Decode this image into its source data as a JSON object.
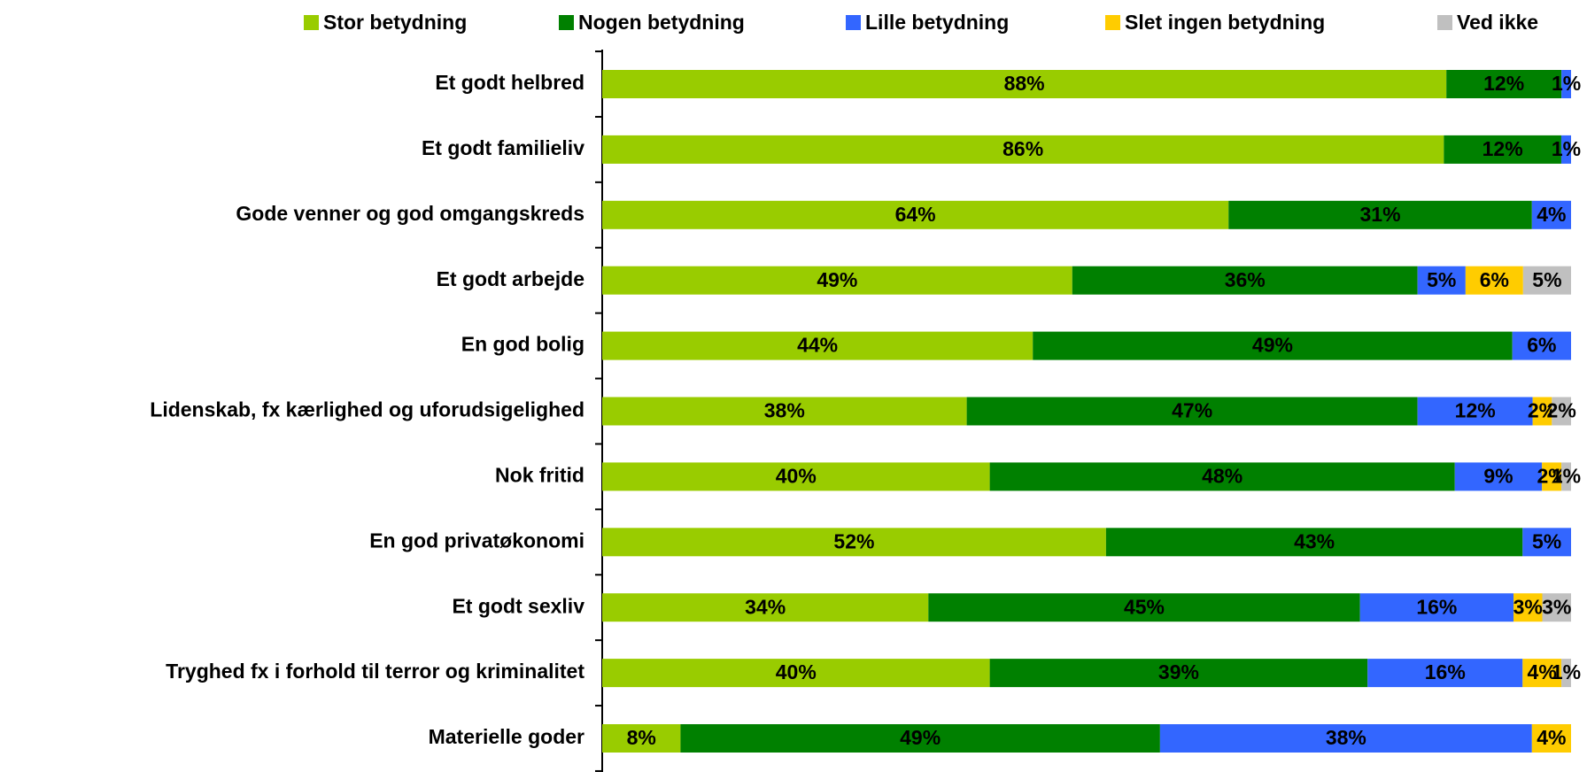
{
  "chart_data": {
    "type": "bar",
    "orientation": "horizontal",
    "stack": "percent",
    "categories": [
      "Et godt helbred",
      "Et godt familieliv",
      "Gode venner og god omgangskreds",
      "Et godt arbejde",
      "En god bolig",
      "Lidenskab, fx kærlighed og uforudsigelighed",
      "Nok fritid",
      "En god privatøkonomi",
      "Et godt sexliv",
      "Tryghed fx i forhold til terror og kriminalitet",
      "Materielle goder"
    ],
    "series": [
      {
        "name": "Stor betydning",
        "color": "#99cc00",
        "values": [
          88,
          86,
          64,
          49,
          44,
          38,
          40,
          52,
          34,
          40,
          8
        ],
        "value_labels": [
          "88%",
          "86%",
          "64%",
          "49%",
          "44%",
          "38%",
          "40%",
          "52%",
          "34%",
          "40%",
          "8%"
        ]
      },
      {
        "name": "Nogen betydning",
        "color": "#008000",
        "values": [
          12,
          12,
          31,
          36,
          49,
          47,
          48,
          43,
          45,
          39,
          49
        ],
        "value_labels": [
          "12%",
          "12%",
          "31%",
          "36%",
          "49%",
          "47%",
          "48%",
          "43%",
          "45%",
          "39%",
          "49%"
        ]
      },
      {
        "name": "Lille betydning",
        "color": "#3366ff",
        "values": [
          1,
          1,
          4,
          5,
          6,
          12,
          9,
          5,
          16,
          16,
          38
        ],
        "value_labels": [
          "1%",
          "1%",
          "4%",
          "5%",
          "6%",
          "12%",
          "9%",
          "5%",
          "16%",
          "16%",
          "38%"
        ]
      },
      {
        "name": "Slet ingen betydning",
        "color": "#ffcc00",
        "values": [
          null,
          null,
          null,
          6,
          null,
          2,
          2,
          null,
          3,
          4,
          4
        ],
        "value_labels": [
          null,
          null,
          null,
          "6%",
          null,
          "2%",
          "2%",
          null,
          "3%",
          "4%",
          "4%"
        ]
      },
      {
        "name": "Ved ikke",
        "color": "#c0c0c0",
        "values": [
          null,
          null,
          null,
          5,
          null,
          2,
          1,
          null,
          3,
          1,
          null
        ],
        "value_labels": [
          null,
          null,
          null,
          "5%",
          null,
          "2%",
          "1%",
          null,
          "3%",
          "1%",
          null
        ]
      }
    ],
    "legend": "top"
  }
}
